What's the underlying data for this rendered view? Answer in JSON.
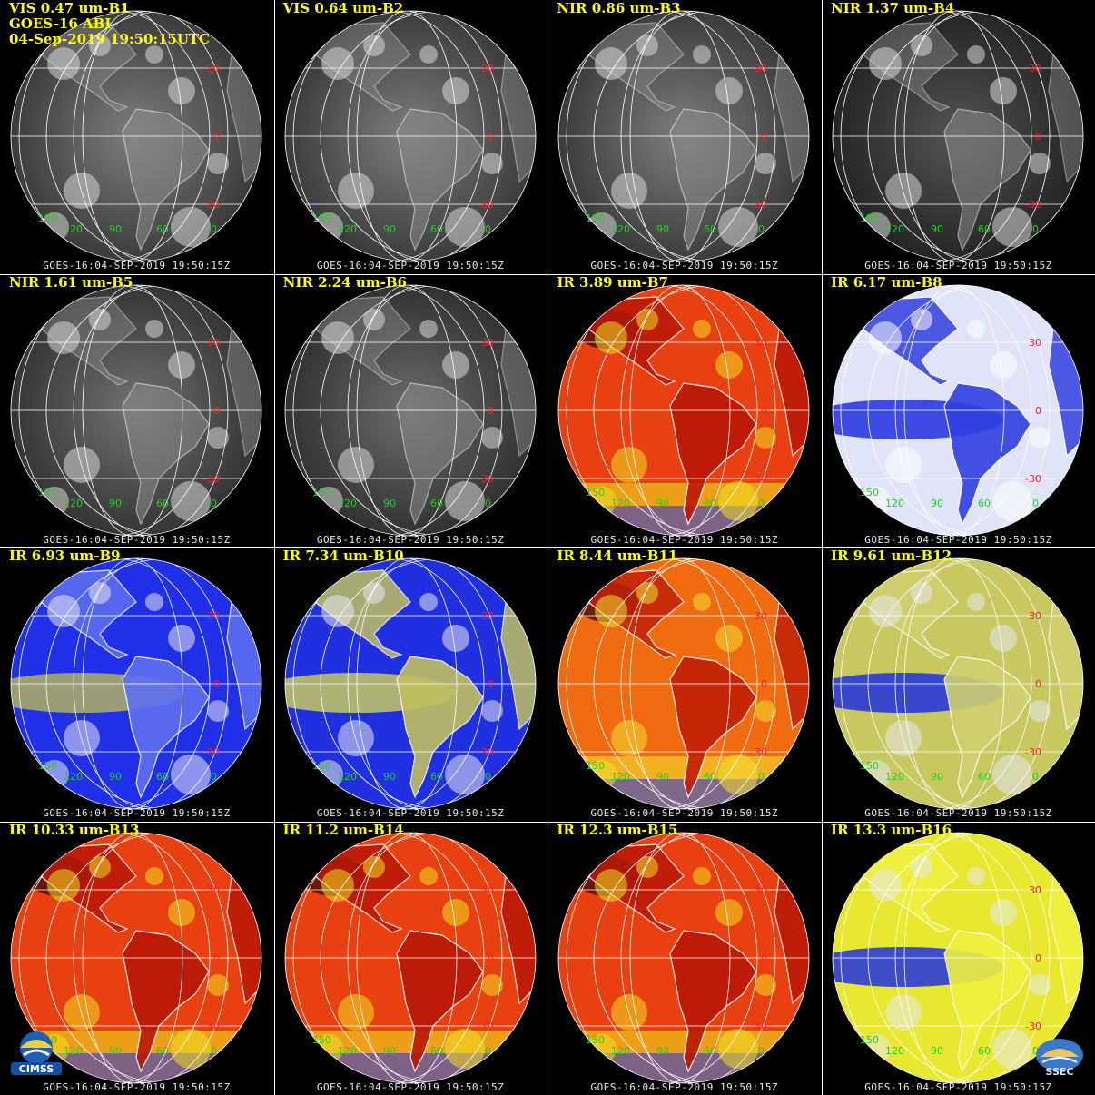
{
  "header": {
    "satellite_line": "GOES-16 ABI",
    "datetime_line": "04-Sep-2019 19:50:15UTC"
  },
  "footer_text": "GOES-16:04-SEP-2019 19:50:15Z",
  "grid_labels": {
    "lat": [
      "30",
      "0",
      "-30"
    ],
    "lon": [
      "150",
      "120",
      "90",
      "60",
      "0"
    ]
  },
  "panels": [
    {
      "title": "VIS 0.47 um-B1",
      "style": "gray",
      "brightness": 0.55
    },
    {
      "title": "VIS 0.64 um-B2",
      "style": "gray",
      "brightness": 0.55
    },
    {
      "title": "NIR 0.86 um-B3",
      "style": "gray",
      "brightness": 0.55
    },
    {
      "title": "NIR 1.37 um-B4",
      "style": "gray",
      "brightness": 0.2
    },
    {
      "title": "NIR 1.61 um-B5",
      "style": "gray",
      "brightness": 0.45
    },
    {
      "title": "NIR 2.24 um-B6",
      "style": "gray",
      "brightness": 0.4
    },
    {
      "title": "IR 3.89 um-B7",
      "style": "warm"
    },
    {
      "title": "IR 6.17 um-B8",
      "style": "wv-light"
    },
    {
      "title": "IR 6.93 um-B9",
      "style": "wv"
    },
    {
      "title": "IR 7.34 um-B10",
      "style": "wv-yellow"
    },
    {
      "title": "IR 8.44 um-B11",
      "style": "warm-orange"
    },
    {
      "title": "IR 9.61 um-B12",
      "style": "ozone"
    },
    {
      "title": "IR 10.33 um-B13",
      "style": "warm"
    },
    {
      "title": "IR 11.2 um-B14",
      "style": "warm"
    },
    {
      "title": "IR 12.3 um-B15",
      "style": "warm"
    },
    {
      "title": "IR 13.3 um-B16",
      "style": "yellow"
    }
  ],
  "logos": {
    "left": "CIMSS",
    "right": "SSEC"
  },
  "colors": {
    "title": "#ffff00",
    "lat_label": "#ff2020",
    "lon_label": "#20d020",
    "grid": "#ffffff"
  }
}
